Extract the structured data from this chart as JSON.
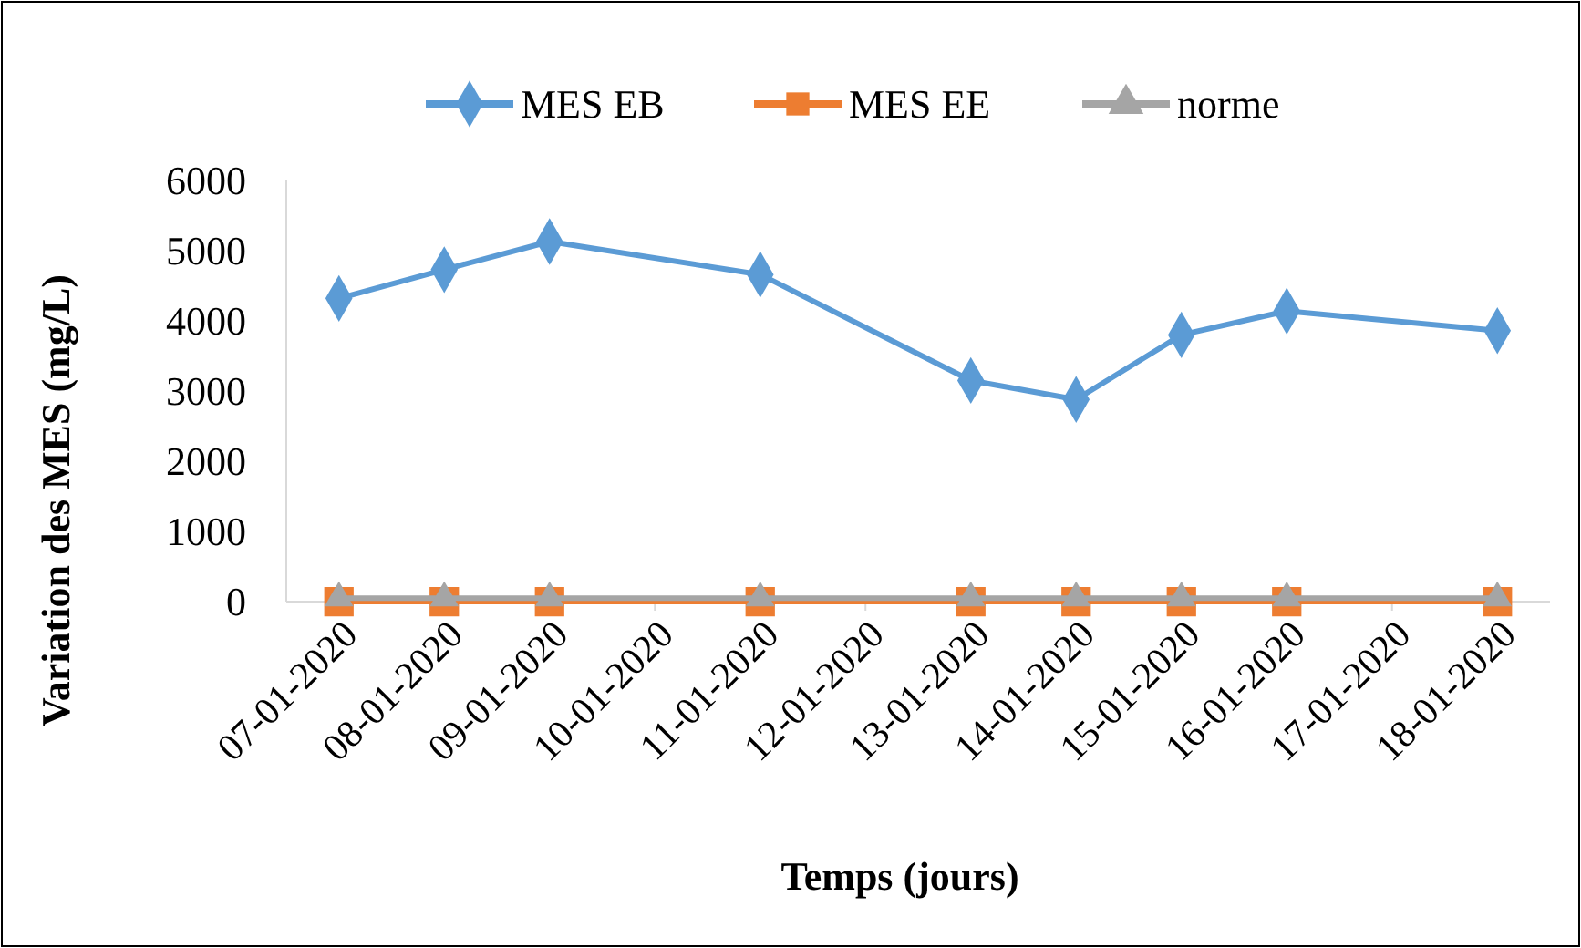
{
  "chart_data": {
    "type": "line",
    "xlabel": "Temps (jours)",
    "ylabel": "Variation des MES (mg/L)",
    "x": [
      "2020-01-07",
      "2020-01-08",
      "2020-01-09",
      "2020-01-11",
      "2020-01-13",
      "2020-01-14",
      "2020-01-15",
      "2020-01-16",
      "2020-01-18"
    ],
    "xlim": [
      "2020-01-06T12:00",
      "2020-01-18T12:00"
    ],
    "xticks": [
      {
        "value": "2020-01-07",
        "label": "07-01-2020"
      },
      {
        "value": "2020-01-08",
        "label": "08-01-2020"
      },
      {
        "value": "2020-01-09",
        "label": "09-01-2020"
      },
      {
        "value": "2020-01-10",
        "label": "10-01-2020"
      },
      {
        "value": "2020-01-11",
        "label": "11-01-2020"
      },
      {
        "value": "2020-01-12",
        "label": "12-01-2020"
      },
      {
        "value": "2020-01-13",
        "label": "13-01-2020"
      },
      {
        "value": "2020-01-14",
        "label": "14-01-2020"
      },
      {
        "value": "2020-01-15",
        "label": "15-01-2020"
      },
      {
        "value": "2020-01-16",
        "label": "16-01-2020"
      },
      {
        "value": "2020-01-17",
        "label": "17-01-2020"
      },
      {
        "value": "2020-01-18",
        "label": "18-01-2020"
      }
    ],
    "ylim": [
      0,
      6000
    ],
    "yticks": [
      0,
      1000,
      2000,
      3000,
      4000,
      5000,
      6000
    ],
    "legend": "top",
    "series": [
      {
        "name": "MES EB",
        "color": "#5b9bd5",
        "marker": "diamond",
        "values": [
          4320,
          4730,
          5130,
          4660,
          3150,
          2880,
          3800,
          4140,
          3860
        ]
      },
      {
        "name": "MES EE",
        "color": "#ed7d31",
        "marker": "square",
        "values": [
          0,
          0,
          0,
          0,
          0,
          0,
          0,
          0,
          0
        ]
      },
      {
        "name": "norme",
        "color": "#a5a5a5",
        "marker": "triangle",
        "values": [
          50,
          50,
          50,
          50,
          50,
          50,
          50,
          50,
          50
        ]
      }
    ]
  }
}
